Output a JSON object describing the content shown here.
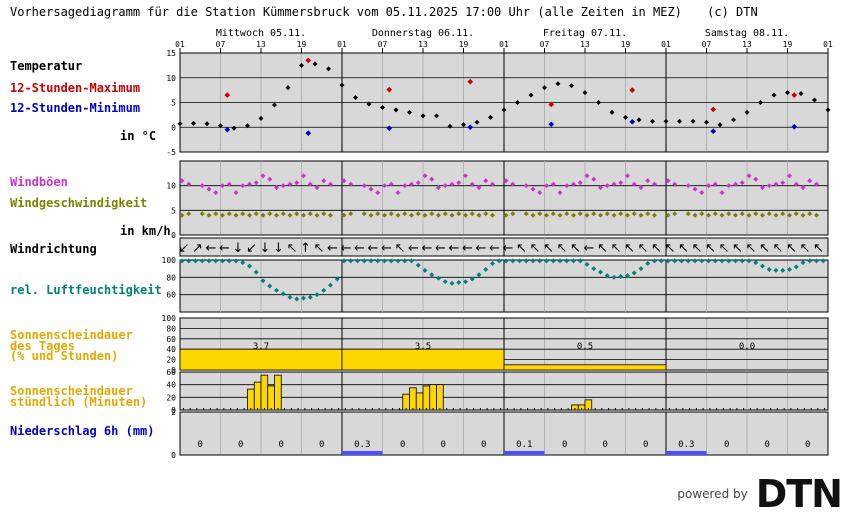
{
  "header": {
    "title": "Vorhersagediagramm für die Station Kümmersbruck vom 05.11.2025 17:00 Uhr (alle Zeiten in MEZ)",
    "copyright": "(c) DTN"
  },
  "days": [
    "Mittwoch 05.11.",
    "Donnerstag 06.11.",
    "Freitag 07.11.",
    "Samstag 08.11."
  ],
  "hour_ticks": [
    "01",
    "07",
    "13",
    "19",
    "01",
    "07",
    "13",
    "19",
    "01",
    "07",
    "13",
    "19",
    "01",
    "07",
    "13",
    "19",
    "01"
  ],
  "labels": {
    "temperatur": "Temperatur",
    "tmax": "12-Stunden-Maximum",
    "tmin": "12-Stunden-Minimum",
    "unit_temp": "in °C",
    "windboeen": "Windböen",
    "windgeschw": "Windgeschwindigkeit",
    "unit_wind": "in km/h",
    "windrichtung": "Windrichtung",
    "feuchte": "rel. Luftfeuchtigkeit",
    "sonne_tag_1": "Sonnenscheindauer",
    "sonne_tag_2": "des Tages",
    "sonne_tag_3": "(% und Stunden)",
    "sonne_std_1": "Sonnenscheindauer",
    "sonne_std_2": "stündlich (Minuten)",
    "niederschlag": "Niederschlag 6h (mm)"
  },
  "colors": {
    "temp": "#000000",
    "tmax": "#cc0000",
    "tmin": "#0000cc",
    "gust": "#cc33cc",
    "wind": "#808000",
    "humidity": "#008080",
    "sun": "#ffd700",
    "precip": "#4d4dff",
    "panel": "#d8d8d8"
  },
  "chart_data": [
    {
      "type": "line",
      "title": "Temperatur",
      "ylim": [
        -5,
        15
      ],
      "yticks": [
        -5,
        0,
        5,
        10,
        15
      ],
      "x_hours_from_start": [
        0,
        2,
        4,
        6,
        8,
        10,
        12,
        14,
        16,
        18,
        20,
        22,
        24,
        26,
        28,
        30,
        32,
        34,
        36,
        38,
        40,
        42,
        44,
        46,
        48,
        50,
        52,
        54,
        56,
        58,
        60,
        62,
        64,
        66,
        68,
        70,
        72,
        74,
        76,
        78,
        80,
        82,
        84,
        86,
        88,
        90,
        92,
        94,
        96
      ],
      "series": [
        {
          "values": [
            0.7,
            0.8,
            0.7,
            0.3,
            -0.2,
            0.3,
            1.8,
            4.5,
            8.0,
            12.5,
            12.8,
            11.8,
            8.5,
            6.0,
            4.7,
            4.0,
            3.5,
            3.0,
            2.3,
            2.3,
            0.2,
            0.5,
            1.0,
            2.0,
            3.5,
            5.0,
            6.5,
            8.0,
            8.8,
            8.4,
            7.0,
            5.0,
            3.0,
            2.0,
            1.5,
            1.2,
            1.2,
            1.2,
            1.2,
            1.0,
            0.5,
            1.5,
            3.0,
            5.0,
            6.5,
            7.0,
            6.8,
            5.5,
            3.5
          ]
        }
      ],
      "tmax_points": [
        {
          "h": 7,
          "v": 6.5
        },
        {
          "h": 19,
          "v": 13.5
        },
        {
          "h": 31,
          "v": 7.6
        },
        {
          "h": 43,
          "v": 9.2
        },
        {
          "h": 55,
          "v": 4.6
        },
        {
          "h": 67,
          "v": 7.5
        },
        {
          "h": 79,
          "v": 3.6
        },
        {
          "h": 91,
          "v": 6.5
        }
      ],
      "tmin_points": [
        {
          "h": 7,
          "v": -0.5
        },
        {
          "h": 19,
          "v": -1.2
        },
        {
          "h": 31,
          "v": -0.2
        },
        {
          "h": 43,
          "v": 0.0
        },
        {
          "h": 55,
          "v": 0.6
        },
        {
          "h": 67,
          "v": 1.1
        },
        {
          "h": 79,
          "v": -0.8
        },
        {
          "h": 91,
          "v": 0.1
        }
      ]
    },
    {
      "type": "scatter",
      "title": "Wind",
      "ylim": [
        0,
        15
      ],
      "yticks": [
        0,
        5,
        10
      ],
      "gusts": [
        11,
        11,
        null,
        10,
        10,
        10,
        10,
        11,
        10,
        10,
        11,
        12,
        12,
        12,
        11,
        10,
        11,
        12,
        12,
        11,
        11,
        11,
        11
      ],
      "speed": [
        4,
        4,
        null,
        4,
        4,
        4,
        4,
        4,
        4,
        4,
        4,
        4,
        4,
        4,
        4,
        4,
        4,
        4,
        4,
        4,
        4,
        4,
        4
      ]
    },
    {
      "type": "line",
      "title": "rel. Luftfeuchtigkeit",
      "ylim": [
        40,
        100
      ],
      "yticks": [
        60,
        80,
        100
      ],
      "values": [
        99,
        99,
        99,
        99,
        99,
        99,
        99,
        99,
        99,
        99,
        99,
        99,
        99,
        97,
        93,
        86,
        76,
        70,
        65,
        61,
        57,
        55,
        56,
        57,
        60,
        65,
        71,
        78,
        84,
        89,
        93,
        96,
        98,
        99,
        99,
        99,
        99
      ]
    },
    {
      "type": "bar",
      "title": "Sonnenscheindauer des Tages (% und Stunden)",
      "ylim": [
        0,
        100
      ],
      "yticks": [
        0,
        20,
        40,
        60,
        80,
        100
      ],
      "percent": [
        40,
        40,
        10,
        0
      ],
      "hours_labels": [
        "3.7",
        "3.5",
        "0.5",
        "0.0"
      ]
    },
    {
      "type": "bar",
      "title": "Sonnenscheindauer stündlich (Minuten)",
      "ylim": [
        0,
        60
      ],
      "yticks": [
        0,
        20,
        40,
        60
      ],
      "day1": [
        33,
        44,
        55,
        38,
        55
      ],
      "day2": [
        25,
        35,
        27,
        38,
        40,
        40
      ],
      "day3": [
        8,
        8,
        16
      ]
    },
    {
      "type": "bar",
      "title": "Niederschlag 6h (mm)",
      "ylim": [
        0,
        2
      ],
      "yticks": [
        0,
        2
      ],
      "labels": [
        "0",
        "0",
        "0",
        "0",
        "0.3",
        "0",
        "0",
        "0",
        "0.1",
        "0",
        "0",
        "0",
        "0.3",
        "0",
        "0",
        "0"
      ],
      "values": [
        0,
        0,
        0,
        0,
        0.3,
        0,
        0,
        0,
        0.1,
        0,
        0,
        0,
        0.3,
        0,
        0,
        0
      ]
    }
  ],
  "wind_directions": [
    "↙",
    "↗",
    "←",
    "←",
    "↓",
    "↙",
    "↓",
    "↓",
    "↖",
    "↑",
    "↖",
    "←",
    "←",
    "←",
    "←",
    "←",
    "↖",
    "←",
    "←",
    "←",
    "←",
    "←",
    "←",
    "←",
    "←",
    "↖",
    "↖",
    "↖",
    "↖",
    "↖",
    "←",
    "↖",
    "↖",
    "↖",
    "↖",
    "↖",
    "↖",
    "↖",
    "↖",
    "↖",
    "↖",
    "↖",
    "↖",
    "↖",
    "↖",
    "↖",
    "↖",
    "↖"
  ],
  "branding": {
    "powered": "powered by",
    "logo": "DTN"
  }
}
